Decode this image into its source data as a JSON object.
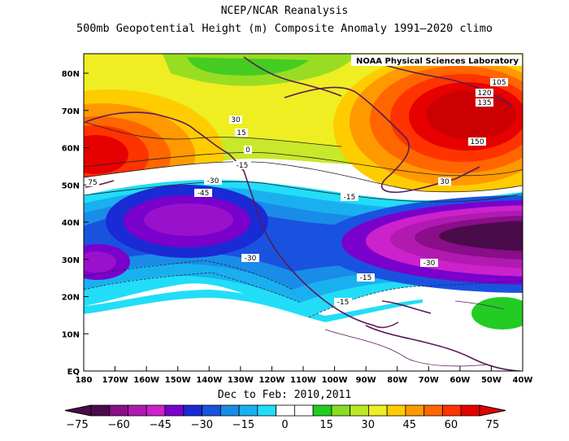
{
  "title": "NCEP/NCAR Reanalysis",
  "subtitle": "500mb Geopotential Height (m) Composite Anomaly 1991–2020 climo",
  "period": "Dec to Feb: 2010,2011",
  "credit": "NOAA Physical Sciences Laboratory",
  "map": {
    "lat_labels": [
      "80N",
      "70N",
      "60N",
      "50N",
      "40N",
      "30N",
      "20N",
      "10N",
      "EQ"
    ],
    "lon_labels": [
      "180",
      "170W",
      "160W",
      "150W",
      "140W",
      "130W",
      "120W",
      "110W",
      "100W",
      "90W",
      "80W",
      "70W",
      "60W",
      "50W",
      "40W"
    ]
  },
  "contour_labels": [
    "105",
    "120",
    "135",
    "150",
    "30",
    "15",
    "0",
    "-15",
    "-30",
    "-45",
    "75",
    "30",
    "-15",
    "-30",
    "-15",
    "-30",
    "-15"
  ],
  "colorbar": {
    "labels": [
      "−75",
      "−60",
      "−45",
      "−30",
      "−15",
      "0",
      "15",
      "30",
      "45",
      "60",
      "75"
    ],
    "colors": [
      "#4a0b4a",
      "#8a0d8a",
      "#b01ab0",
      "#cc22cc",
      "#7a00cc",
      "#1a2ad4",
      "#1a52e0",
      "#1a8ce8",
      "#1ab0f0",
      "#22ddf8",
      "#ffffff",
      "#ffffff",
      "#22cc22",
      "#88dd22",
      "#bbe822",
      "#eeee22",
      "#ffcc00",
      "#ff9900",
      "#ff6600",
      "#ff3300",
      "#e60000"
    ]
  }
}
